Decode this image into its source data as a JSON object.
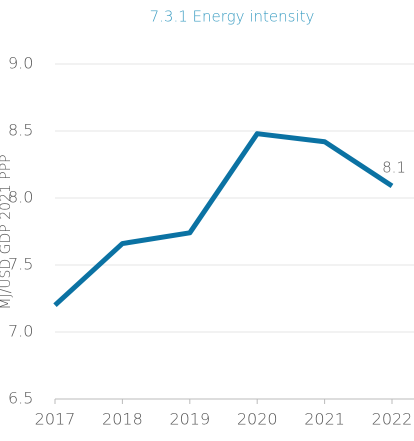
{
  "chart_data": {
    "type": "line",
    "title": "7.3.1 Energy intensity",
    "y_label": "MJ/USD GDP 2021 PPP",
    "categories": [
      "2017",
      "2018",
      "2019",
      "2020",
      "2021",
      "2022"
    ],
    "series": [
      {
        "name": "Energy intensity",
        "color": "#0b72a3",
        "values": [
          7.2,
          7.66,
          7.74,
          8.48,
          8.42,
          8.09
        ],
        "value_labels": [
          null,
          null,
          null,
          null,
          null,
          "8.1"
        ]
      }
    ],
    "ylim": [
      6.5,
      9.0
    ],
    "yticks": [
      {
        "value": 6.5,
        "label": "6.5"
      },
      {
        "value": 7.0,
        "label": "7.0"
      },
      {
        "value": 7.5,
        "label": "7.5"
      },
      {
        "value": 8.0,
        "label": "8.0"
      },
      {
        "value": 8.5,
        "label": "8.5"
      },
      {
        "value": 9.0,
        "label": "9.0"
      }
    ],
    "grid": true
  }
}
